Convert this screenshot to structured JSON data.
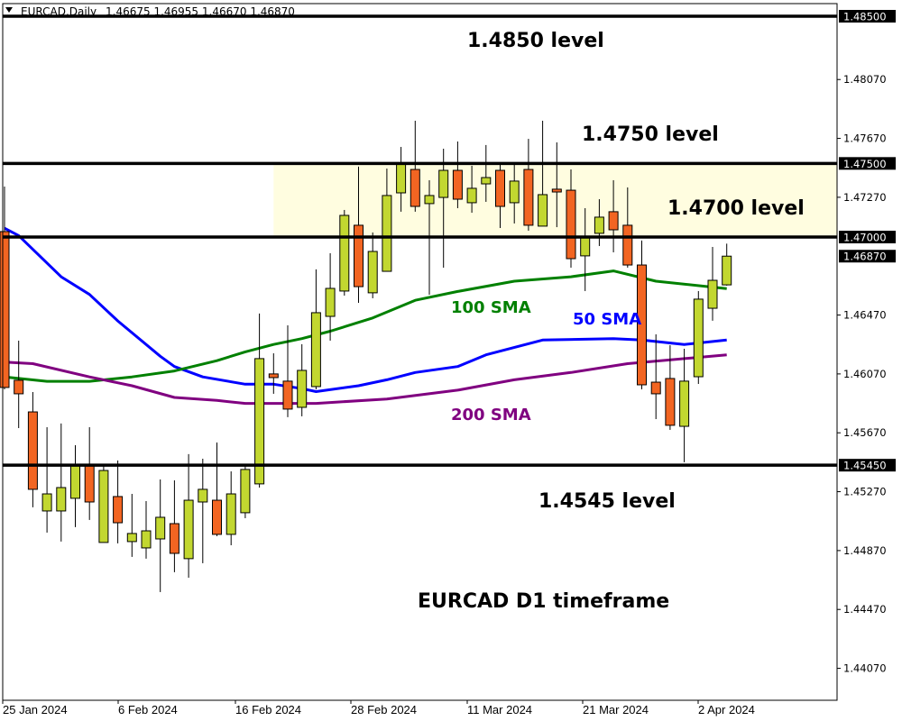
{
  "header": {
    "symbol_label": "EURCAD,Daily",
    "ohlc": "1.46675 1.46955 1.46670 1.46870",
    "menu_icon": "triangle-down-icon"
  },
  "chart_data": {
    "type": "candlestick",
    "symbol": "EURCAD",
    "timeframe": "Daily",
    "ylim": [
      1.4385,
      1.486
    ],
    "grid": false,
    "colors": {
      "bull": "#c2d730",
      "bear": "#f26522",
      "outline": "#000000",
      "zone": "#fffde0",
      "level": "#000000"
    },
    "y_ticks": [
      "1.48070",
      "1.47670",
      "1.47270",
      "1.46470",
      "1.46070",
      "1.45670",
      "1.45270",
      "1.44870",
      "1.44470",
      "1.44070"
    ],
    "y_price_labels": [
      "1.48500",
      "1.47500",
      "1.47000",
      "1.46870",
      "1.45450"
    ],
    "x_ticks": [
      {
        "label": "25 Jan 2024",
        "bar": 0
      },
      {
        "label": "6 Feb 2024",
        "bar": 8
      },
      {
        "label": "16 Feb 2024",
        "bar": 16
      },
      {
        "label": "28 Feb 2024",
        "bar": 24
      },
      {
        "label": "11 Mar 2024",
        "bar": 32
      },
      {
        "label": "21 Mar 2024",
        "bar": 40
      },
      {
        "label": "2 Apr 2024",
        "bar": 49
      }
    ],
    "candles": [
      [
        1.47037,
        1.47343,
        1.45965,
        1.45978
      ],
      [
        1.46027,
        1.46296,
        1.45702,
        1.45935
      ],
      [
        1.45812,
        1.45947,
        1.45164,
        1.45286
      ],
      [
        1.45139,
        1.45708,
        1.44992,
        1.45255
      ],
      [
        1.45139,
        1.45733,
        1.44931,
        1.45298
      ],
      [
        1.45225,
        1.45586,
        1.45029,
        1.45457
      ],
      [
        1.45457,
        1.45708,
        1.45078,
        1.452
      ],
      [
        1.44925,
        1.45445,
        1.44925,
        1.45414
      ],
      [
        1.45237,
        1.45482,
        1.44919,
        1.45059
      ],
      [
        1.44931,
        1.45255,
        1.44827,
        1.44986
      ],
      [
        1.44888,
        1.45206,
        1.44815,
        1.45004
      ],
      [
        1.44949,
        1.45353,
        1.44588,
        1.45096
      ],
      [
        1.45053,
        1.45347,
        1.44723,
        1.44851
      ],
      [
        1.44815,
        1.45525,
        1.44686,
        1.45212
      ],
      [
        1.452,
        1.45494,
        1.44784,
        1.45286
      ],
      [
        1.45212,
        1.45604,
        1.44968,
        1.4498
      ],
      [
        1.4498,
        1.45408,
        1.44906,
        1.45255
      ],
      [
        1.45127,
        1.45451,
        1.4509,
        1.45421
      ],
      [
        1.45323,
        1.4648,
        1.45298,
        1.46174
      ],
      [
        1.4607,
        1.4621,
        1.45935,
        1.46045
      ],
      [
        1.46021,
        1.464,
        1.45776,
        1.45831
      ],
      [
        1.45843,
        1.46272,
        1.45782,
        1.46094
      ],
      [
        1.45984,
        1.4678,
        1.45965,
        1.46486
      ],
      [
        1.46461,
        1.4689,
        1.46296,
        1.46651
      ],
      [
        1.46633,
        1.47184,
        1.46602,
        1.47147
      ],
      [
        1.4708,
        1.47478,
        1.46553,
        1.46663
      ],
      [
        1.46621,
        1.47031,
        1.46584,
        1.46902
      ],
      [
        1.46767,
        1.47465,
        1.46767,
        1.47282
      ],
      [
        1.473,
        1.47612,
        1.47172,
        1.47496
      ],
      [
        1.47459,
        1.4779,
        1.47172,
        1.47208
      ],
      [
        1.47227,
        1.47386,
        1.46608,
        1.47282
      ],
      [
        1.47269,
        1.476,
        1.46792,
        1.47453
      ],
      [
        1.47453,
        1.47649,
        1.47196,
        1.47257
      ],
      [
        1.47233,
        1.47484,
        1.47165,
        1.47331
      ],
      [
        1.47361,
        1.47625,
        1.47239,
        1.47404
      ],
      [
        1.47453,
        1.47496,
        1.47061,
        1.47208
      ],
      [
        1.47233,
        1.4749,
        1.47092,
        1.4738
      ],
      [
        1.47459,
        1.47667,
        1.47043,
        1.4708
      ],
      [
        1.47074,
        1.4779,
        1.47074,
        1.47288
      ],
      [
        1.47325,
        1.47643,
        1.47067,
        1.47306
      ],
      [
        1.47318,
        1.47459,
        1.46792,
        1.46853
      ],
      [
        1.46872,
        1.47196,
        1.46633,
        1.46994
      ],
      [
        1.47025,
        1.47257,
        1.46939,
        1.47135
      ],
      [
        1.47172,
        1.47386,
        1.46896,
        1.47049
      ],
      [
        1.4708,
        1.47337,
        1.46792,
        1.4681
      ],
      [
        1.4681,
        1.46976,
        1.45965,
        1.45996
      ],
      [
        1.46014,
        1.46339,
        1.45763,
        1.45935
      ],
      [
        1.46039,
        1.46265,
        1.4569,
        1.45721
      ],
      [
        1.45714,
        1.46241,
        1.4547,
        1.46021
      ],
      [
        1.46051,
        1.46633,
        1.46002,
        1.46578
      ],
      [
        1.46516,
        1.46933,
        1.46431,
        1.46706
      ],
      [
        1.46675,
        1.46955,
        1.4667,
        1.4687
      ]
    ],
    "candle_fields": [
      "open",
      "high",
      "low",
      "close"
    ],
    "series": [
      {
        "name": "50 SMA",
        "color": "#0000ff",
        "points": [
          [
            0,
            1.4706
          ],
          [
            1,
            1.4701
          ],
          [
            4,
            1.4673
          ],
          [
            6,
            1.4661
          ],
          [
            8,
            1.4643
          ],
          [
            11,
            1.4619
          ],
          [
            12,
            1.4612
          ],
          [
            14,
            1.4605
          ],
          [
            17,
            1.46
          ],
          [
            19,
            1.46
          ],
          [
            21,
            1.4597
          ],
          [
            22,
            1.4595
          ],
          [
            25,
            1.4599
          ],
          [
            27,
            1.4603
          ],
          [
            29,
            1.4608
          ],
          [
            32,
            1.4612
          ],
          [
            34,
            1.462
          ],
          [
            38,
            1.463
          ],
          [
            43,
            1.4631
          ],
          [
            45,
            1.463
          ],
          [
            48,
            1.4627
          ],
          [
            51,
            1.463
          ]
        ]
      },
      {
        "name": "100 SMA",
        "color": "#008000",
        "points": [
          [
            0,
            1.4605
          ],
          [
            3,
            1.4602
          ],
          [
            6,
            1.4602
          ],
          [
            9,
            1.4605
          ],
          [
            12,
            1.4609
          ],
          [
            15,
            1.4616
          ],
          [
            17,
            1.4622
          ],
          [
            19,
            1.4627
          ],
          [
            21,
            1.4631
          ],
          [
            23,
            1.4636
          ],
          [
            26,
            1.4645
          ],
          [
            29,
            1.4657
          ],
          [
            32,
            1.4663
          ],
          [
            36,
            1.467
          ],
          [
            40,
            1.4673
          ],
          [
            43,
            1.4677
          ],
          [
            46,
            1.467
          ],
          [
            51,
            1.4665
          ]
        ]
      },
      {
        "name": "200 SMA",
        "color": "#800080",
        "points": [
          [
            0,
            1.4615
          ],
          [
            2,
            1.4614
          ],
          [
            6,
            1.4605
          ],
          [
            9,
            1.4599
          ],
          [
            12,
            1.4591
          ],
          [
            15,
            1.4589
          ],
          [
            17,
            1.4587
          ],
          [
            22,
            1.4587
          ],
          [
            27,
            1.459
          ],
          [
            32,
            1.4596
          ],
          [
            36,
            1.4603
          ],
          [
            40,
            1.4608
          ],
          [
            44,
            1.4614
          ],
          [
            51,
            1.462
          ]
        ]
      }
    ],
    "levels": [
      1.485,
      1.475,
      1.47,
      1.4545
    ],
    "zone": {
      "from_bar": 19,
      "low": 1.47,
      "high": 1.475
    },
    "annotations": [
      {
        "text": "1.4850 level",
        "color": "#000000"
      },
      {
        "text": "1.4750 level",
        "color": "#000000"
      },
      {
        "text": "1.4700 level",
        "color": "#000000"
      },
      {
        "text": "100 SMA",
        "color": "#008000"
      },
      {
        "text": "50 SMA",
        "color": "#0000ff"
      },
      {
        "text": "200 SMA",
        "color": "#800080"
      },
      {
        "text": "1.4545 level",
        "color": "#000000"
      },
      {
        "text": "EURCAD D1 timeframe",
        "color": "#000000"
      }
    ]
  }
}
